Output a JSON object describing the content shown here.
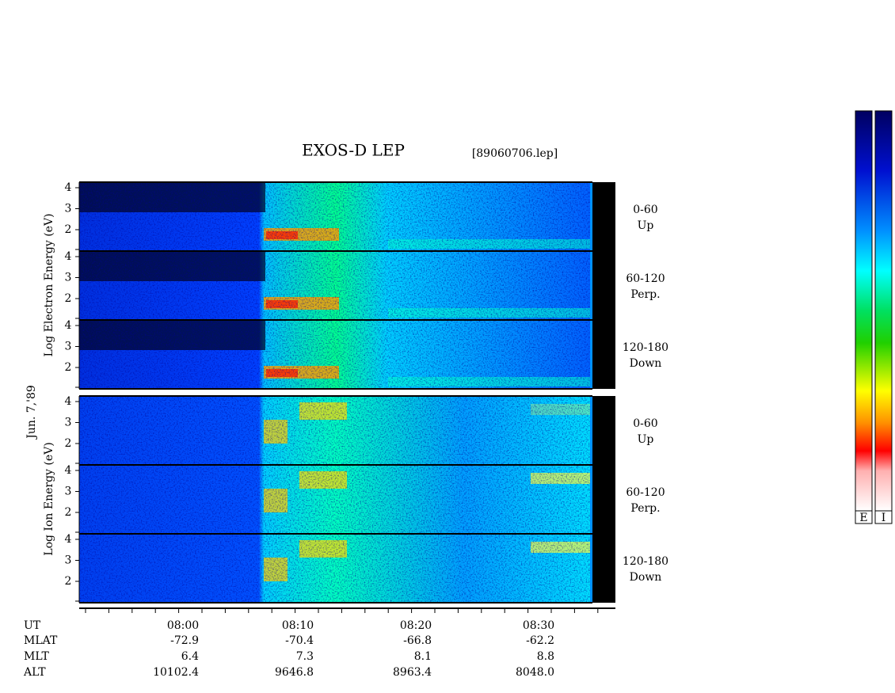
{
  "title": "EXOS-D LEP",
  "file": "[89060706.lep]",
  "date": "Jun. 7,'89",
  "electron": {
    "axis_label": "Log Electron Energy (eV)",
    "panels": [
      {
        "label": "0-60",
        "sublabel": "Up",
        "ticks": [
          "4",
          "3",
          "2"
        ]
      },
      {
        "label": "60-120",
        "sublabel": "Perp.",
        "ticks": [
          "4",
          "3",
          "2"
        ]
      },
      {
        "label": "120-180",
        "sublabel": "Down",
        "ticks": [
          "4",
          "3",
          "2"
        ]
      }
    ]
  },
  "ion": {
    "axis_label": "Log Ion Energy (eV)",
    "panels": [
      {
        "label": "0-60",
        "sublabel": "Up",
        "ticks": [
          "4",
          "3",
          "2"
        ]
      },
      {
        "label": "60-120",
        "sublabel": "Perp.",
        "ticks": [
          "4",
          "3",
          "2"
        ]
      },
      {
        "label": "120-180",
        "sublabel": "Down",
        "ticks": [
          "4",
          "3",
          "2"
        ]
      }
    ]
  },
  "time_axis": {
    "rows": [
      {
        "name": "UT",
        "values": [
          "08:00",
          "08:10",
          "08:20",
          "08:30"
        ]
      },
      {
        "name": "MLAT",
        "values": [
          "-72.9",
          "-70.4",
          "-66.8",
          "-62.2"
        ]
      },
      {
        "name": "MLT",
        "values": [
          "6.4",
          "7.3",
          "8.1",
          "8.8"
        ]
      },
      {
        "name": "ALT",
        "values": [
          "10102.4",
          "9646.8",
          "8963.4",
          "8048.0"
        ]
      }
    ]
  },
  "colorbars": [
    "E",
    "I"
  ]
}
